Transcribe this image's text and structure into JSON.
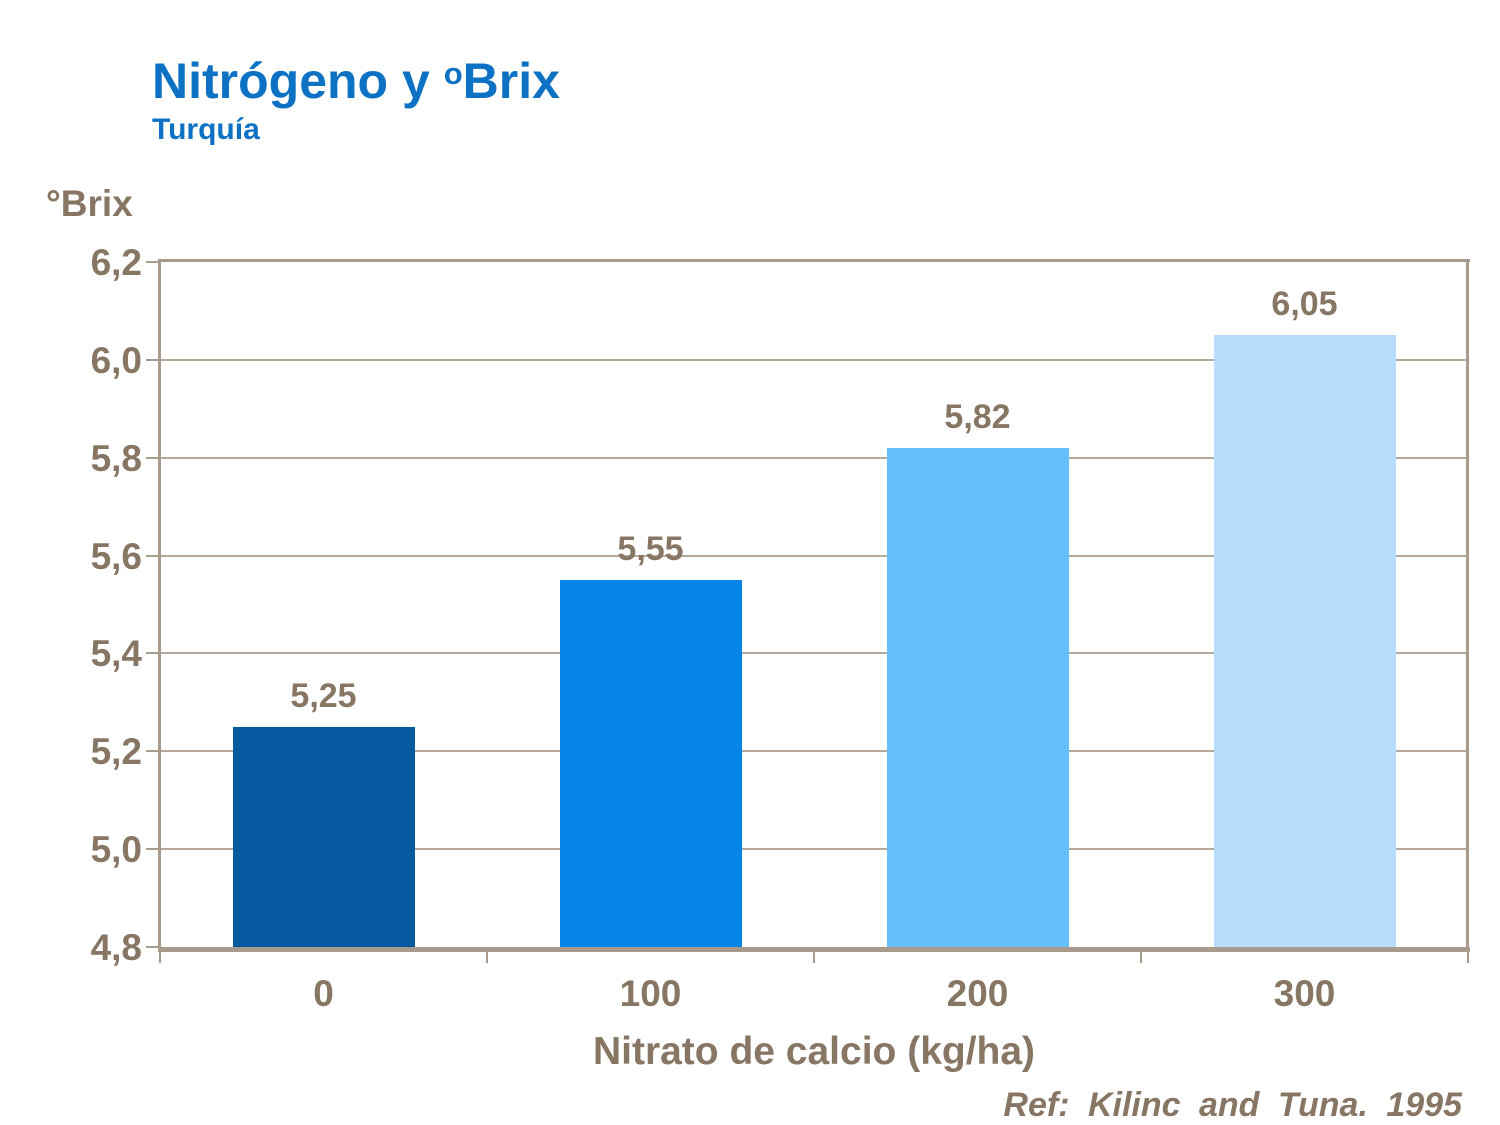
{
  "slide": {
    "title_prefix": "Nitrógeno y ",
    "title_sup": "o",
    "title_suffix": "Brix",
    "subtitle": "Turquía",
    "reference": "Ref: Kilinc and Tuna. 1995"
  },
  "colors": {
    "background": "#ffffff",
    "title_blue": "#0d72c4",
    "text_brown": "#877663",
    "axis_line": "#a89b8b",
    "gridline": "#b3a89b"
  },
  "chart_data": {
    "type": "bar",
    "title": "Nitrógeno y ºBrix",
    "subtitle": "Turquía",
    "xlabel": "Nitrato de calcio (kg/ha)",
    "ylabel": "°Brix",
    "categories": [
      "0",
      "100",
      "200",
      "300"
    ],
    "values": [
      5.25,
      5.55,
      5.82,
      6.05
    ],
    "value_labels": [
      "5,25",
      "5,55",
      "5,82",
      "6,05"
    ],
    "bar_colors": [
      "#05599e",
      "#0685e8",
      "#66befa",
      "#b6ddfb"
    ],
    "ylim": [
      4.8,
      6.2
    ],
    "ytick_values": [
      4.8,
      5.0,
      5.2,
      5.4,
      5.6,
      5.8,
      6.0,
      6.2
    ],
    "ytick_labels": [
      "4,8",
      "5,0",
      "5,2",
      "5,4",
      "5,6",
      "5,8",
      "6,0",
      "6,2"
    ],
    "grid": true,
    "legend": "none",
    "annotation": "Ref: Kilinc and Tuna. 1995"
  }
}
